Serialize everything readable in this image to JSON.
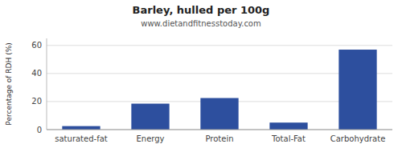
{
  "chart_data": {
    "type": "bar",
    "title": "Barley, hulled per 100g",
    "subtitle": "www.dietandfitnesstoday.com",
    "categories": [
      "saturated-fat",
      "Energy",
      "Protein",
      "Total-Fat",
      "Carbohydrate"
    ],
    "values": [
      2.5,
      18.5,
      22.5,
      5.0,
      57.0
    ],
    "color": "#2d4f9e",
    "ylabel": "Percentage of RDH (%)",
    "ylim": [
      0,
      65
    ],
    "yticks": [
      0,
      20,
      40,
      60
    ],
    "grid": true
  }
}
